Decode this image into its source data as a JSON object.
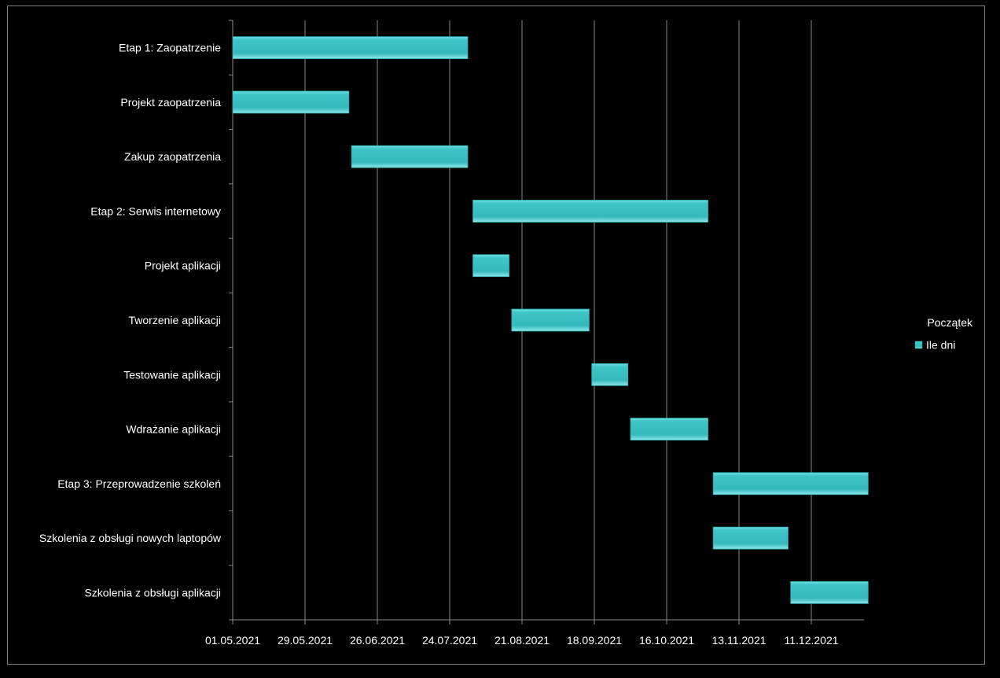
{
  "chart_data": {
    "type": "bar",
    "orientation": "horizontal",
    "stacked": true,
    "title": "",
    "xlabel": "",
    "ylabel": "",
    "categories": [
      "Etap 1: Zaopatrzenie",
      "Projekt zaopatrzenia",
      "Zakup zaopatrzenia",
      "Etap 2: Serwis internetowy",
      "Projekt aplikacji",
      "Tworzenie aplikacji",
      "Testowanie aplikacji",
      "Wdrażanie aplikacji",
      "Etap 3: Przeprowadzenie szkoleń",
      "Szkolenia z obsługi nowych laptopów",
      "Szkolenia z obsługi aplikacji"
    ],
    "x_ticks": [
      "01.05.2021",
      "29.05.2021",
      "26.06.2021",
      "24.07.2021",
      "21.08.2021",
      "18.09.2021",
      "16.10.2021",
      "13.11.2021",
      "11.12.2021"
    ],
    "xlim": [
      "2021-05-01",
      "2021-12-31"
    ],
    "series": [
      {
        "name": "Początek",
        "visible": false,
        "values": [
          "2021-05-01",
          "2021-05-01",
          "2021-06-16",
          "2021-08-02",
          "2021-08-02",
          "2021-08-17",
          "2021-09-17",
          "2021-10-02",
          "2021-11-03",
          "2021-11-03",
          "2021-12-03"
        ]
      },
      {
        "name": "Ile dni",
        "color": "#3fc4c8",
        "values": [
          91,
          45,
          45,
          91,
          14,
          30,
          14,
          30,
          60,
          29,
          30
        ]
      }
    ],
    "grid": "vertical",
    "legend": "right"
  }
}
